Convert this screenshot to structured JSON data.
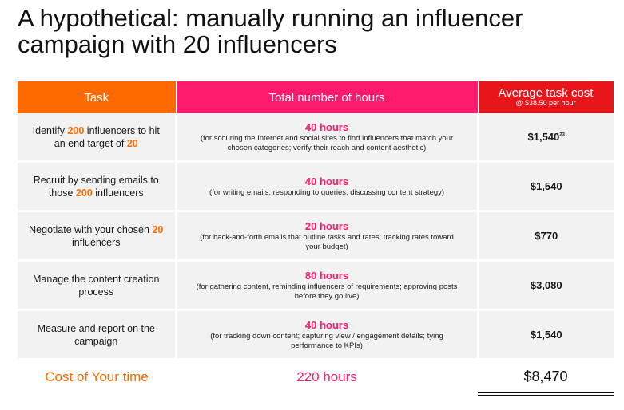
{
  "title_line1": "A hypothetical: manually running an influencer",
  "title_line2": "campaign with 20 influencers",
  "headers": {
    "task": "Task",
    "hours": "Total number of hours",
    "cost": "Average task cost",
    "cost_sub": "@ $38.50 per hour"
  },
  "rows": [
    {
      "task_a": "Identify ",
      "task_b": "200",
      "task_c": " influencers to hit an end target of ",
      "task_d": "20",
      "hours": "40 hours",
      "note": "(for scouring the Internet and social sites to find influencers that match your chosen categories; verify their reach and content aesthetic)",
      "cost": "$1,540",
      "cost_sup": "23"
    },
    {
      "task_a": "Recruit by sending emails to those ",
      "task_b": "200",
      "task_c": " influencers",
      "task_d": "",
      "hours": "40 hours",
      "note": "(for writing emails; responding to queries; discussing content strategy)",
      "cost": "$1,540",
      "cost_sup": ""
    },
    {
      "task_a": "Negotiate with your chosen ",
      "task_b": "20",
      "task_c": " influencers",
      "task_d": "",
      "hours": "20 hours",
      "note": "(for back-and-forth emails that outline tasks and rates; tracking rates toward your budget)",
      "cost": "$770",
      "cost_sup": ""
    },
    {
      "task_a": "Manage the content creation process",
      "task_b": "",
      "task_c": "",
      "task_d": "",
      "hours": "80 hours",
      "note": "(for gathering content, reminding influencers of requirements; approving posts before they go live)",
      "cost": "$3,080",
      "cost_sup": ""
    },
    {
      "task_a": "Measure and report on the campaign",
      "task_b": "",
      "task_c": "",
      "task_d": "",
      "hours": "40 hours",
      "note": "(for tracking down content; capturing view / engagement details; tying performance to KPIs)",
      "cost": "$1,540",
      "cost_sup": ""
    }
  ],
  "total": {
    "label": "Cost of Your time",
    "hours": "220 hours",
    "cost": "$8,470"
  },
  "colors": {
    "orange": "#ff6a00",
    "pink": "#ff1a6e",
    "red": "#e8151b",
    "row_bg": "#f2f2f2"
  }
}
